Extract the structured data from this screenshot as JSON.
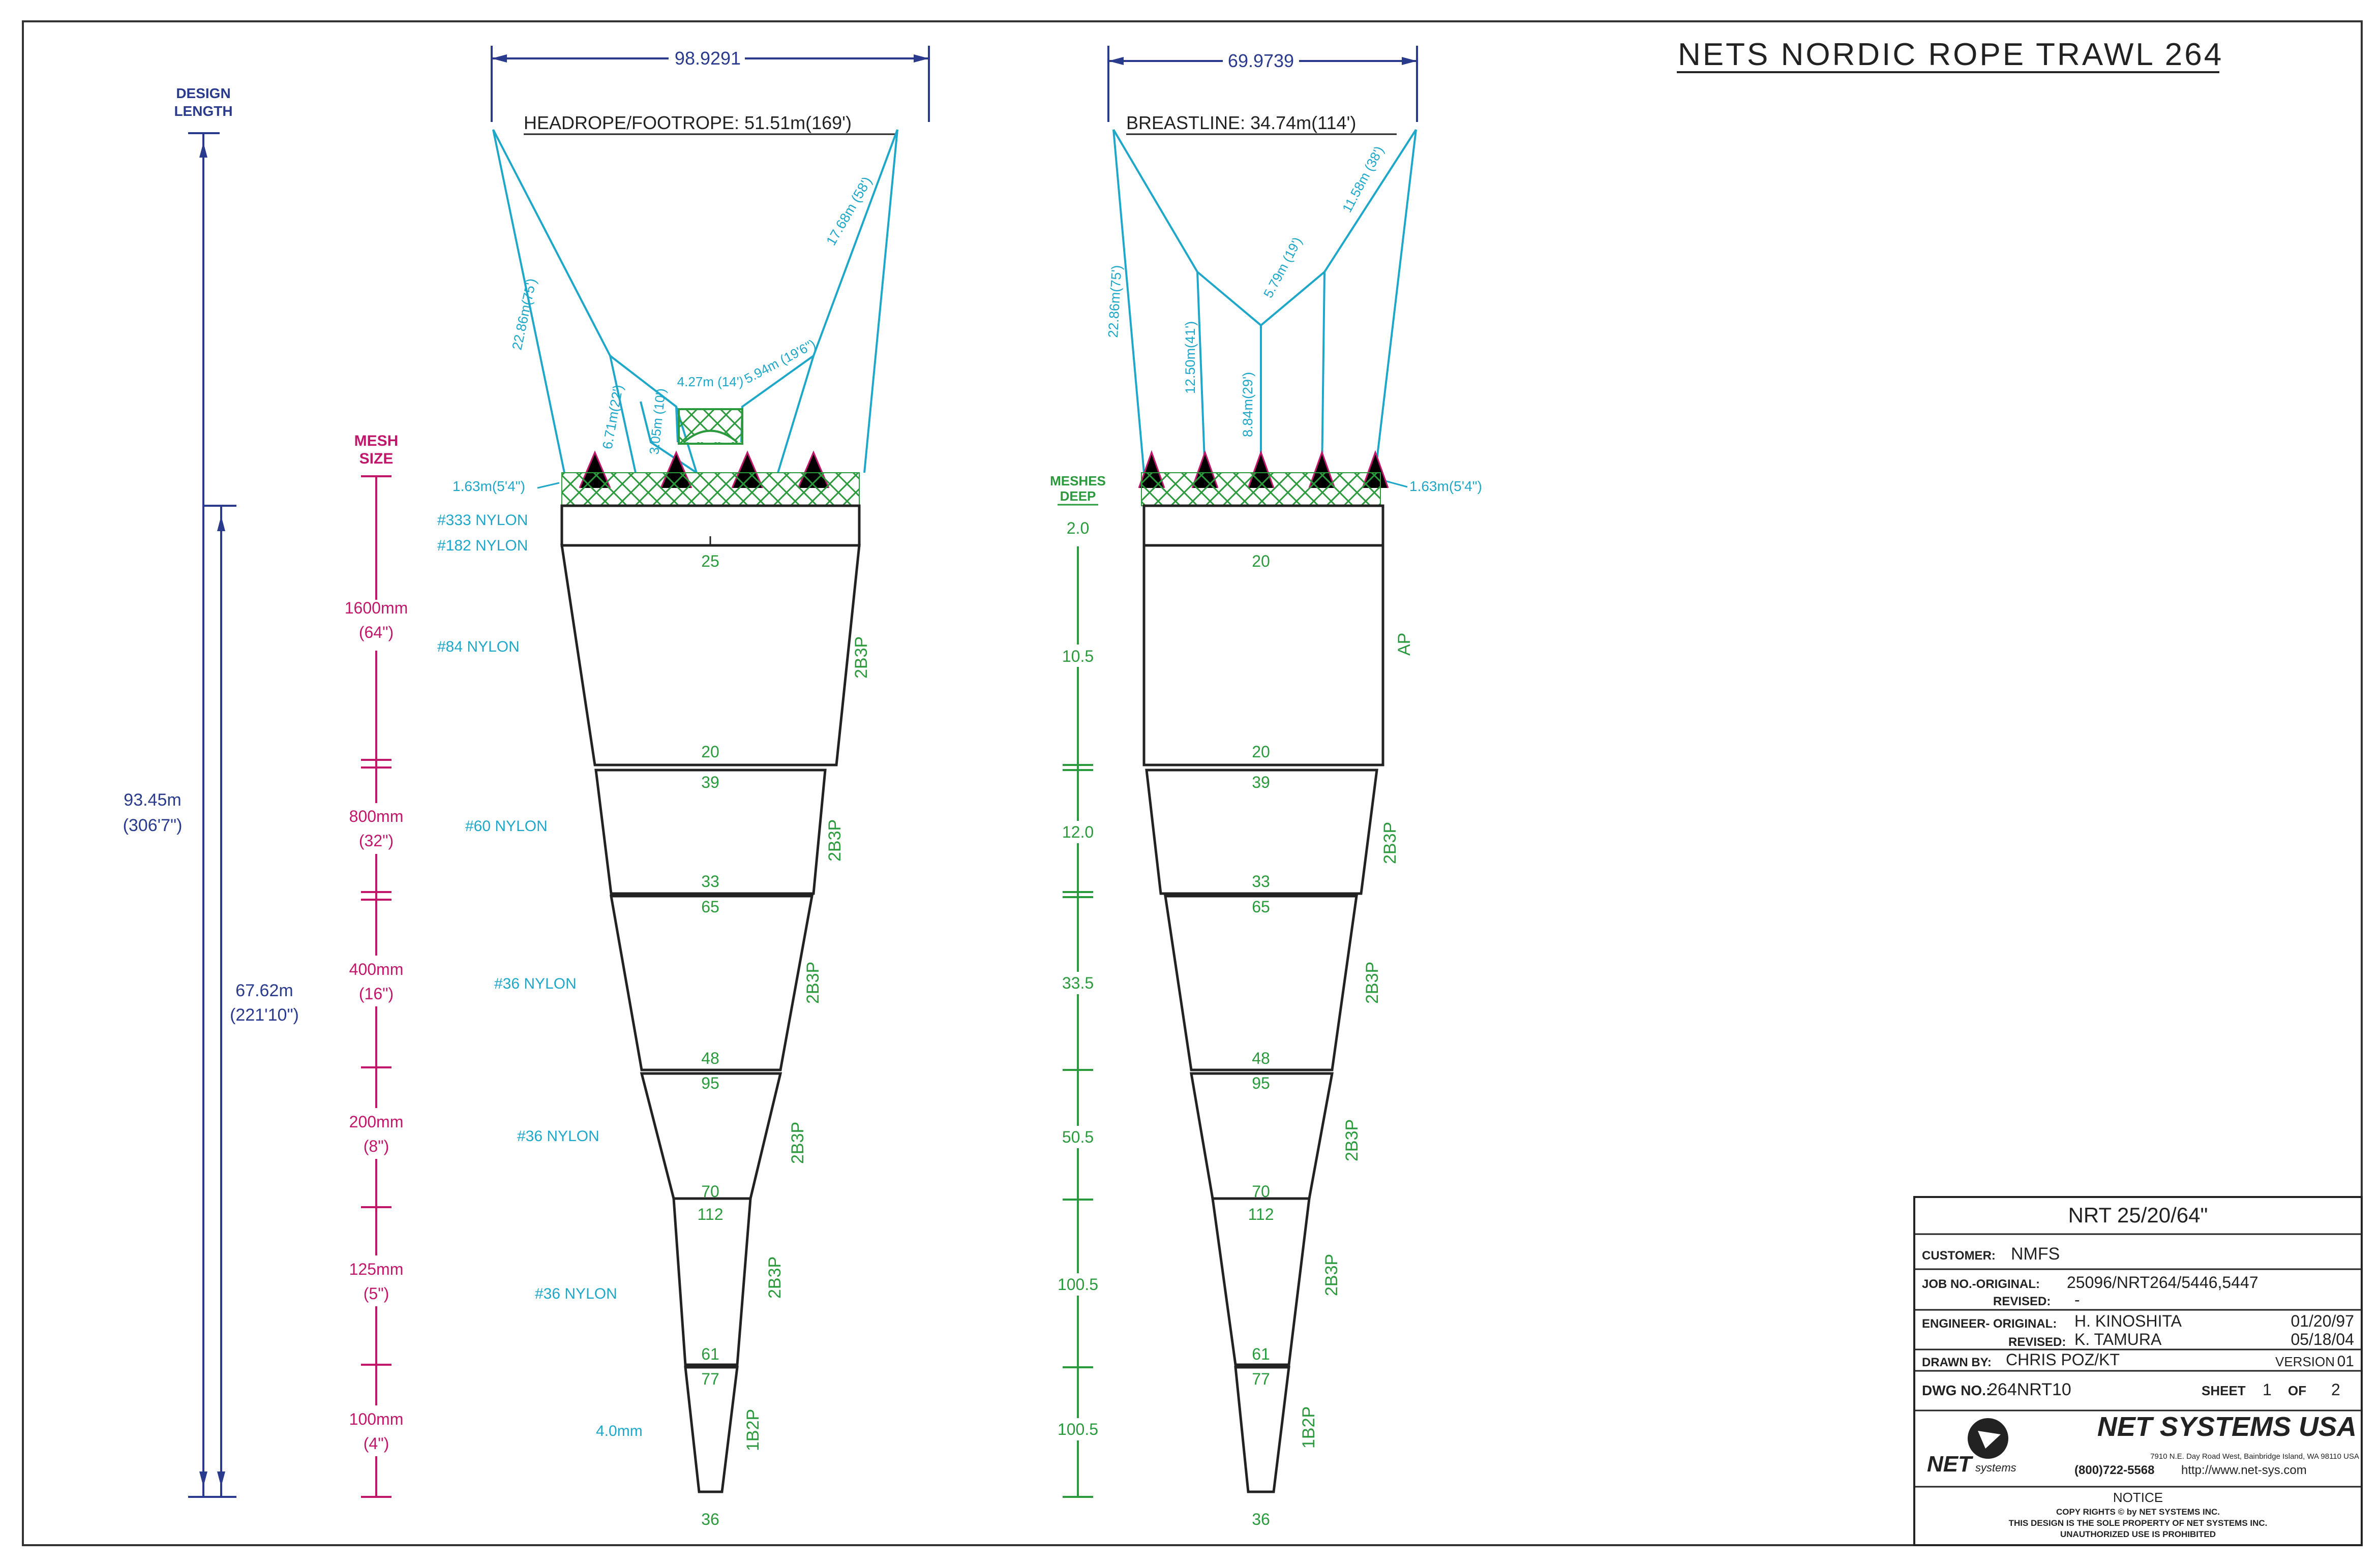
{
  "title": "NETS NORDIC ROPE TRAWL 264",
  "left_drawing": {
    "top_width": "98.9291",
    "headline": "HEADROPE/FOOTROPE: 51.51m(169')",
    "wing_labels": [
      "22.86m(75')",
      "6.71m(22')",
      "3.05m (10')",
      "4.27m (14')",
      "5.94m (19'6\")",
      "17.68m (58')"
    ],
    "wingtip_label": "1.63m(5'4\")",
    "twine_labels": [
      "#333 NYLON",
      "#182 NYLON",
      "#84 NYLON",
      "#60 NYLON",
      "#36 NYLON",
      "#36 NYLON",
      "#36 NYLON",
      "4.0mm"
    ],
    "panel_counts": [
      "25",
      "20",
      "39",
      "33",
      "65",
      "48",
      "95",
      "70",
      "112",
      "61",
      "77",
      "36"
    ],
    "panel_cuts": [
      "2B3P",
      "2B3P",
      "2B3P",
      "2B3P",
      "2B3P",
      "1B2P"
    ]
  },
  "right_drawing": {
    "top_width": "69.9739",
    "headline": "BREASTLINE: 34.74m(114')",
    "wing_labels": [
      "22.86m(75')",
      "12.50m(41')",
      "8.84m(29')",
      "5.79m (19')",
      "11.58m (38')"
    ],
    "wingtip_label": "1.63m(5'4\")",
    "panel_counts": [
      "20",
      "20",
      "39",
      "33",
      "65",
      "48",
      "95",
      "70",
      "112",
      "61",
      "77",
      "36"
    ],
    "panel_cuts": [
      "AP",
      "2B3P",
      "2B3P",
      "2B3P",
      "2B3P",
      "1B2P"
    ]
  },
  "design_length": {
    "header": "DESIGN LENGTH",
    "total": "93.45m",
    "total_ft": "(306'7\")",
    "body": "67.62m",
    "body_ft": "(221'10\")"
  },
  "mesh_size": {
    "header": "MESH SIZE",
    "items": [
      {
        "mm": "1600mm",
        "in": "(64\")"
      },
      {
        "mm": "800mm",
        "in": "(32\")"
      },
      {
        "mm": "400mm",
        "in": "(16\")"
      },
      {
        "mm": "200mm",
        "in": "(8\")"
      },
      {
        "mm": "125mm",
        "in": "(5\")"
      },
      {
        "mm": "100mm",
        "in": "(4\")"
      }
    ]
  },
  "meshes_deep": {
    "header": "MESHES DEEP",
    "items": [
      "2.0",
      "10.5",
      "12.0",
      "33.5",
      "50.5",
      "100.5",
      "100.5"
    ]
  },
  "title_block": {
    "code": "NRT 25/20/64\"",
    "customer_label": "CUSTOMER:",
    "customer": "NMFS",
    "job_label": "JOB NO.-ORIGINAL:",
    "job": "25096/NRT264/5446,5447",
    "job_rev_label": "REVISED:",
    "job_rev": "-",
    "eng_label": "ENGINEER- ORIGINAL:",
    "eng_orig": "H. KINOSHITA",
    "eng_orig_date": "01/20/97",
    "eng_rev_label": "REVISED:",
    "eng_rev": "K. TAMURA",
    "eng_rev_date": "05/18/04",
    "drawn_label": "DRAWN BY:",
    "drawn": "CHRIS POZ/KT",
    "version_label": "VERSION",
    "version": "01",
    "dwg_label": "DWG NO.:",
    "dwg": "264NRT10",
    "sheet_label": "SHEET",
    "sheet": "1",
    "of_label": "OF",
    "of": "2",
    "company": "NET SYSTEMS USA",
    "logo_text": "NET",
    "logo_sub": "systems",
    "address": "7910 N.E. Day Road West, Bainbridge Island, WA 98110 USA",
    "phone": "(800)722-5568",
    "web": "http://www.net-sys.com",
    "notice_title": "NOTICE",
    "notice_1": "COPY RIGHTS © by NET SYSTEMS INC.",
    "notice_2": "THIS DESIGN IS THE SOLE PROPERTY OF NET SYSTEMS INC.",
    "notice_3": "UNAUTHORIZED USE IS PROHIBITED"
  },
  "colors": {
    "rigging": "#1ea7c8",
    "dimension": "#2a3a8c",
    "mesh_size": "#c0176a",
    "counts": "#2a9a3c",
    "outline": "#222222"
  }
}
